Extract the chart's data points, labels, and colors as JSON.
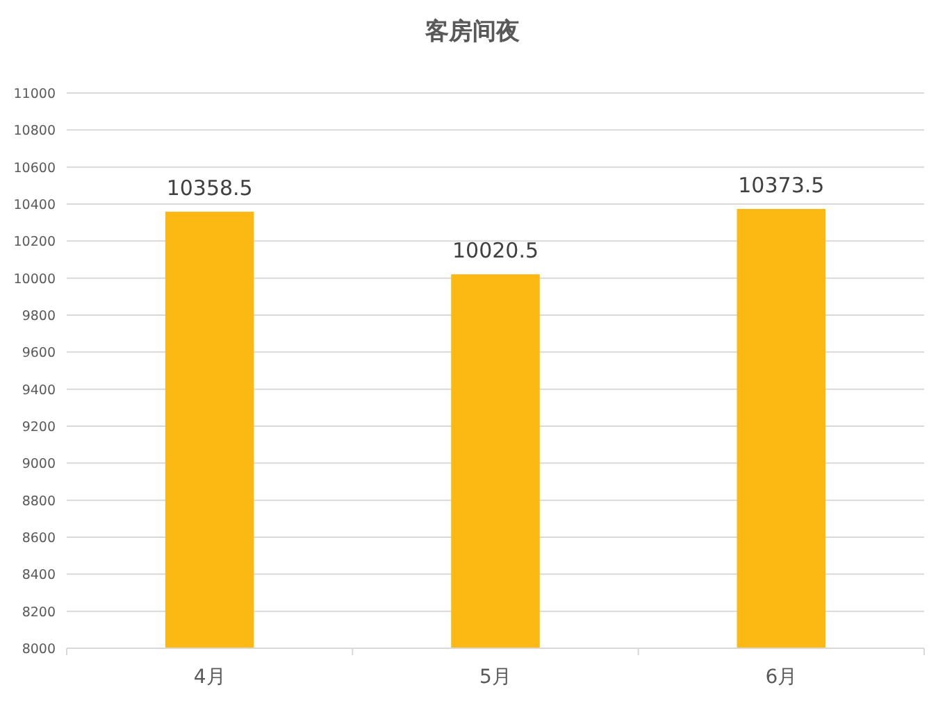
{
  "chart_data": {
    "type": "bar",
    "title": "客房间夜",
    "categories": [
      "4月",
      "5月",
      "6月"
    ],
    "values": [
      10358.5,
      10020.5,
      10373.5
    ],
    "color": "#fcb813",
    "ylim": [
      8000,
      11000
    ],
    "yticks": [
      8000,
      8200,
      8400,
      8600,
      8800,
      9000,
      9200,
      9400,
      9600,
      9800,
      10000,
      10200,
      10400,
      10600,
      10800,
      11000
    ],
    "grid": "y",
    "data_labels": true
  }
}
